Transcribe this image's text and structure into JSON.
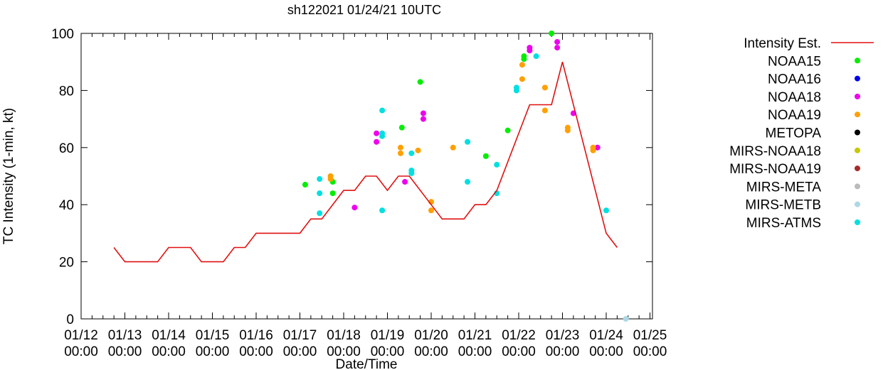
{
  "chart_data": {
    "type": "scatter",
    "title": "sh122021 01/24/21 10UTC",
    "xlabel": "Date/Time",
    "ylabel": "TC Intensity (1-min, kt)",
    "ylim": [
      0,
      100
    ],
    "yticks": [
      0,
      20,
      40,
      60,
      80,
      100
    ],
    "xlim": [
      0,
      13
    ],
    "xtick_labels": [
      {
        "x": 0,
        "line1": "01/12",
        "line2": "00:00"
      },
      {
        "x": 1,
        "line1": "01/13",
        "line2": "00:00"
      },
      {
        "x": 2,
        "line1": "01/14",
        "line2": "00:00"
      },
      {
        "x": 3,
        "line1": "01/15",
        "line2": "00:00"
      },
      {
        "x": 4,
        "line1": "01/16",
        "line2": "00:00"
      },
      {
        "x": 5,
        "line1": "01/17",
        "line2": "00:00"
      },
      {
        "x": 6,
        "line1": "01/18",
        "line2": "00:00"
      },
      {
        "x": 7,
        "line1": "01/19",
        "line2": "00:00"
      },
      {
        "x": 8,
        "line1": "01/20",
        "line2": "00:00"
      },
      {
        "x": 9,
        "line1": "01/21",
        "line2": "00:00"
      },
      {
        "x": 10,
        "line1": "01/22",
        "line2": "00:00"
      },
      {
        "x": 11,
        "line1": "01/23",
        "line2": "00:00"
      },
      {
        "x": 12,
        "line1": "01/24",
        "line2": "00:00"
      },
      {
        "x": 13,
        "line1": "01/25",
        "line2": "00:00"
      }
    ],
    "series": [
      {
        "name": "Intensity Est.",
        "kind": "line",
        "color": "#e01010",
        "points": [
          [
            0.75,
            25
          ],
          [
            1.0,
            20
          ],
          [
            1.75,
            20
          ],
          [
            2.0,
            25
          ],
          [
            2.5,
            25
          ],
          [
            2.75,
            20
          ],
          [
            3.25,
            20
          ],
          [
            3.5,
            25
          ],
          [
            3.75,
            25
          ],
          [
            4.0,
            30
          ],
          [
            5.0,
            30
          ],
          [
            5.25,
            35
          ],
          [
            5.5,
            35
          ],
          [
            6.0,
            45
          ],
          [
            6.25,
            45
          ],
          [
            6.5,
            50
          ],
          [
            6.75,
            50
          ],
          [
            7.0,
            45
          ],
          [
            7.25,
            50
          ],
          [
            7.5,
            50
          ],
          [
            8.0,
            40
          ],
          [
            8.25,
            35
          ],
          [
            8.75,
            35
          ],
          [
            9.0,
            40
          ],
          [
            9.25,
            40
          ],
          [
            9.5,
            45
          ],
          [
            10.25,
            75
          ],
          [
            10.75,
            75
          ],
          [
            11.0,
            90
          ],
          [
            11.5,
            60
          ],
          [
            12.0,
            30
          ],
          [
            12.25,
            25
          ]
        ]
      },
      {
        "name": "NOAA15",
        "kind": "points",
        "color": "#00ee00",
        "points": [
          [
            5.12,
            47
          ],
          [
            5.75,
            48
          ],
          [
            5.75,
            44
          ],
          [
            7.33,
            67
          ],
          [
            7.75,
            83
          ],
          [
            9.25,
            57
          ],
          [
            9.75,
            66
          ],
          [
            10.12,
            91
          ],
          [
            10.12,
            92
          ],
          [
            10.75,
            100
          ]
        ]
      },
      {
        "name": "NOAA16",
        "kind": "points",
        "color": "#0000ee",
        "points": []
      },
      {
        "name": "NOAA18",
        "kind": "points",
        "color": "#ee00ee",
        "points": [
          [
            6.25,
            39
          ],
          [
            6.75,
            65
          ],
          [
            6.75,
            62
          ],
          [
            7.4,
            48
          ],
          [
            7.82,
            72
          ],
          [
            7.82,
            70
          ],
          [
            10.25,
            95
          ],
          [
            10.25,
            94
          ],
          [
            10.88,
            97
          ],
          [
            10.88,
            95
          ],
          [
            11.25,
            72
          ],
          [
            11.8,
            60
          ]
        ]
      },
      {
        "name": "NOAA19",
        "kind": "points",
        "color": "#ffa000",
        "points": [
          [
            5.7,
            50
          ],
          [
            5.7,
            49
          ],
          [
            7.3,
            60
          ],
          [
            7.3,
            58
          ],
          [
            7.7,
            59
          ],
          [
            8.0,
            41
          ],
          [
            8.0,
            38
          ],
          [
            8.5,
            60
          ],
          [
            10.08,
            89
          ],
          [
            10.08,
            84
          ],
          [
            10.6,
            81
          ],
          [
            10.6,
            73
          ],
          [
            11.12,
            67
          ],
          [
            11.12,
            66
          ],
          [
            11.7,
            60
          ],
          [
            11.7,
            59
          ]
        ]
      },
      {
        "name": "METOPA",
        "kind": "points",
        "color": "#000000",
        "points": []
      },
      {
        "name": "MIRS-NOAA18",
        "kind": "points",
        "color": "#c8c800",
        "points": []
      },
      {
        "name": "MIRS-NOAA19",
        "kind": "points",
        "color": "#a52a2a",
        "points": []
      },
      {
        "name": "MIRS-META",
        "kind": "points",
        "color": "#bbbbbb",
        "points": []
      },
      {
        "name": "MIRS-METB",
        "kind": "points",
        "color": "#add8e6",
        "points": [
          [
            12.45,
            0
          ]
        ]
      },
      {
        "name": "MIRS-ATMS",
        "kind": "points",
        "color": "#00e0e0",
        "points": [
          [
            5.45,
            49
          ],
          [
            5.45,
            44
          ],
          [
            5.45,
            37
          ],
          [
            6.88,
            73
          ],
          [
            6.88,
            65
          ],
          [
            6.88,
            64
          ],
          [
            6.88,
            38
          ],
          [
            7.55,
            58
          ],
          [
            7.55,
            52
          ],
          [
            7.55,
            51
          ],
          [
            8.83,
            62
          ],
          [
            8.83,
            48
          ],
          [
            9.5,
            54
          ],
          [
            9.5,
            44
          ],
          [
            9.95,
            81
          ],
          [
            9.95,
            80
          ],
          [
            10.4,
            92
          ],
          [
            12.0,
            38
          ]
        ]
      }
    ]
  }
}
